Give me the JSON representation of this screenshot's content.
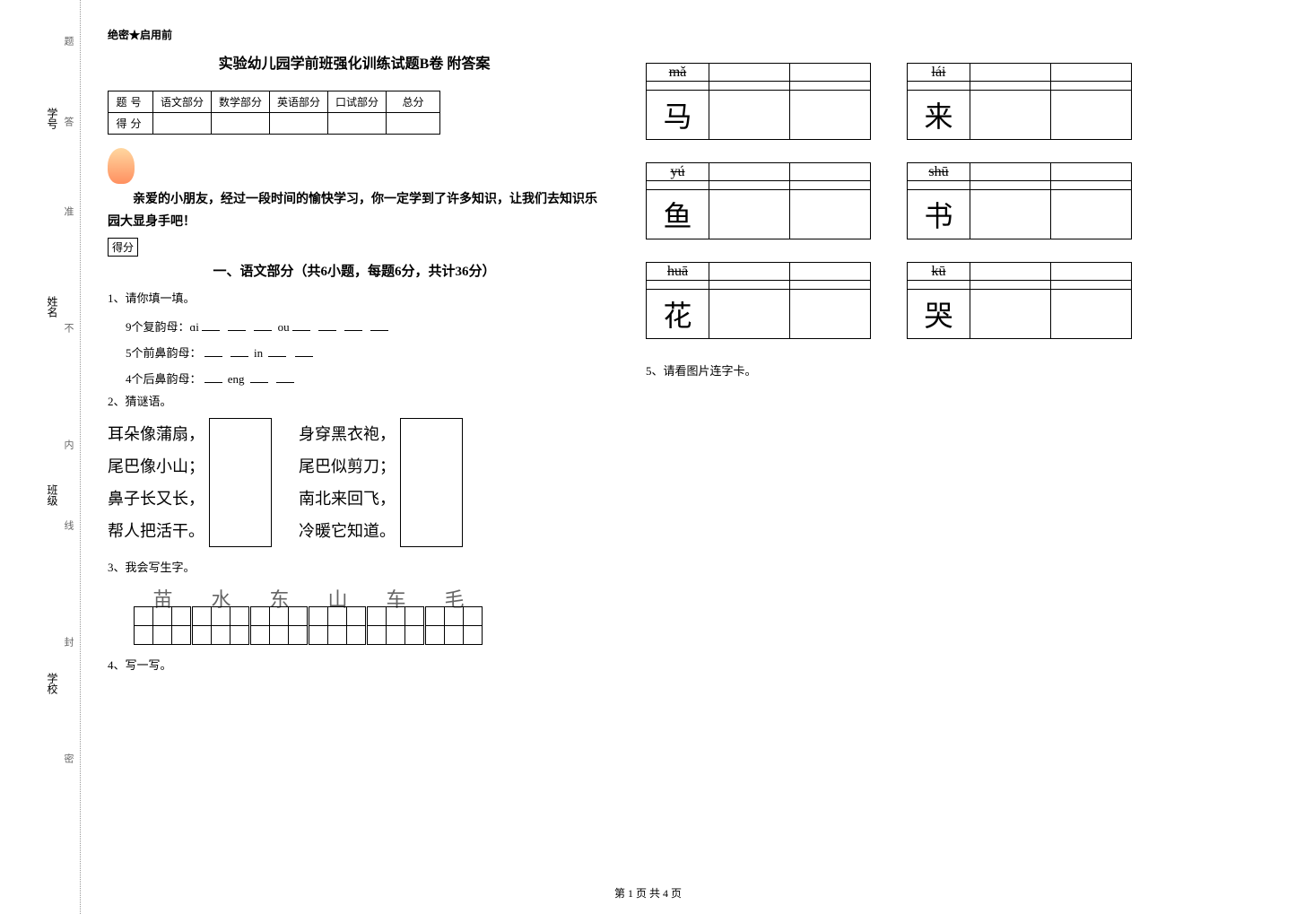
{
  "spine": {
    "labels": [
      "学号",
      "姓名",
      "班级",
      "学校"
    ],
    "chars": [
      "题",
      "答",
      "准",
      "不",
      "内",
      "线",
      "封",
      "密"
    ]
  },
  "header": {
    "secret": "绝密★启用前",
    "title": "实验幼儿园学前班强化训练试题B卷 附答案"
  },
  "score_table": {
    "row1": [
      "题号",
      "语文部分",
      "数学部分",
      "英语部分",
      "口试部分",
      "总分"
    ],
    "row2": [
      "得分",
      "",
      "",
      "",
      "",
      ""
    ]
  },
  "intro": "亲爱的小朋友，经过一段时间的愉快学习，你一定学到了许多知识，让我们去知识乐园大显身手吧！",
  "score_badge": "得分",
  "section1": {
    "title": "一、语文部分（共6小题，每题6分，共计36分）",
    "q1": {
      "label": "1、请你填一填。",
      "line1a": "9个复韵母：ɑi",
      "line1b": "ou",
      "line2a": "5个前鼻韵母：",
      "line2b": "in",
      "line3a": "4个后鼻韵母：",
      "line3b": "eng"
    },
    "q2": {
      "label": "2、猜谜语。",
      "riddle1": [
        "耳朵像蒲扇，",
        "尾巴像小山；",
        "鼻子长又长，",
        "帮人把活干。"
      ],
      "riddle2": [
        "身穿黑衣袍，",
        "尾巴似剪刀；",
        "南北来回飞，",
        "冷暖它知道。"
      ]
    },
    "q3": {
      "label": "3、我会写生字。",
      "chars": [
        "苗",
        "水",
        "东",
        "山",
        "车",
        "毛"
      ]
    },
    "q4": {
      "label": "4、写一写。"
    },
    "q5": {
      "label": "5、请看图片连字卡。"
    }
  },
  "pinyin_cards": [
    [
      {
        "pinyin": "mǎ",
        "char": "马"
      },
      {
        "pinyin": "lái",
        "char": "来"
      }
    ],
    [
      {
        "pinyin": "yú",
        "char": "鱼"
      },
      {
        "pinyin": "shū",
        "char": "书"
      }
    ],
    [
      {
        "pinyin": "huā",
        "char": "花"
      },
      {
        "pinyin": "kū",
        "char": "哭"
      }
    ]
  ],
  "footer": "第 1 页 共 4 页"
}
